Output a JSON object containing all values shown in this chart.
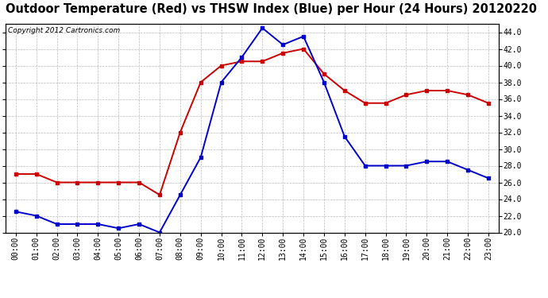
{
  "title": "Outdoor Temperature (Red) vs THSW Index (Blue) per Hour (24 Hours) 20120220",
  "copyright": "Copyright 2012 Cartronics.com",
  "hours": [
    0,
    1,
    2,
    3,
    4,
    5,
    6,
    7,
    8,
    9,
    10,
    11,
    12,
    13,
    14,
    15,
    16,
    17,
    18,
    19,
    20,
    21,
    22,
    23
  ],
  "hour_labels": [
    "00:00",
    "01:00",
    "02:00",
    "03:00",
    "04:00",
    "05:00",
    "06:00",
    "07:00",
    "08:00",
    "09:00",
    "10:00",
    "11:00",
    "12:00",
    "13:00",
    "14:00",
    "15:00",
    "16:00",
    "17:00",
    "18:00",
    "19:00",
    "20:00",
    "21:00",
    "22:00",
    "23:00"
  ],
  "red_temp": [
    27,
    27,
    26,
    26,
    26,
    26,
    26,
    24.5,
    32,
    38,
    40,
    40.5,
    40.5,
    41.5,
    42,
    39,
    37,
    35.5,
    35.5,
    36.5,
    37,
    37,
    36.5,
    35.5
  ],
  "blue_thsw": [
    22.5,
    22,
    21,
    21,
    21,
    20.5,
    21,
    20,
    24.5,
    29,
    38,
    41,
    44.5,
    42.5,
    43.5,
    38,
    31.5,
    28,
    28,
    28,
    28.5,
    28.5,
    27.5,
    26.5
  ],
  "red_color": "#cc0000",
  "blue_color": "#0000cc",
  "bg_color": "#ffffff",
  "grid_color": "#aaaaaa",
  "ylim": [
    20.0,
    45.0
  ],
  "yticks": [
    20.0,
    22.0,
    24.0,
    26.0,
    28.0,
    30.0,
    32.0,
    34.0,
    36.0,
    38.0,
    40.0,
    42.0,
    44.0
  ],
  "title_fontsize": 10.5,
  "copyright_fontsize": 6.5,
  "tick_fontsize": 7,
  "marker": "s",
  "markersize": 3,
  "linewidth": 1.4
}
